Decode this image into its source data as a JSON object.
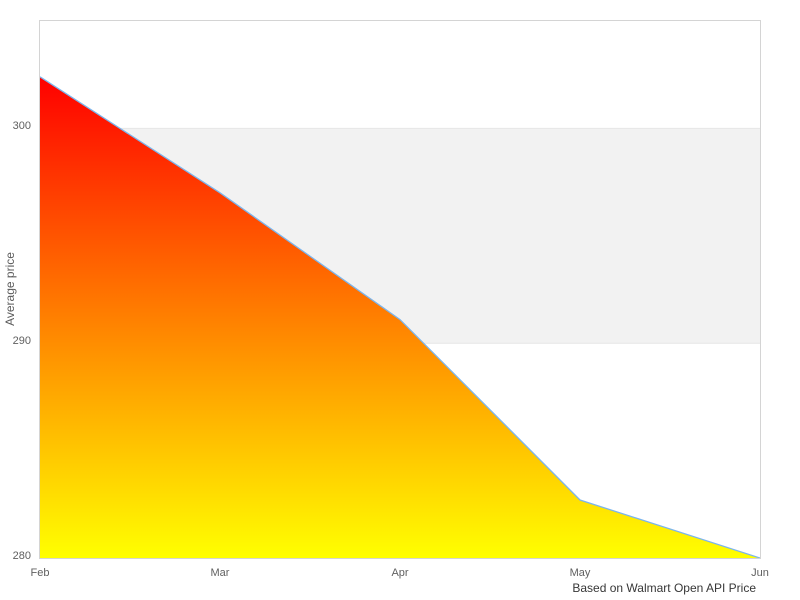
{
  "caption": "Based on Walmart Open API Price",
  "chart_data": {
    "type": "area",
    "title": "",
    "xlabel": "",
    "ylabel": "Average price",
    "categories": [
      "Feb",
      "Mar",
      "Apr",
      "May",
      "Jun"
    ],
    "series": [
      {
        "name": "Average price",
        "values": [
          302.4,
          297.0,
          291.1,
          282.7,
          280.0
        ]
      }
    ],
    "ylim": [
      280,
      305
    ],
    "yticks": [
      280,
      290,
      300
    ],
    "legend": "none",
    "grid": "horizontal",
    "plot_band": {
      "from": 290,
      "to": 300,
      "color": "#f2f2f2"
    },
    "colors": {
      "line": "#7cb5ec",
      "area_top": "#ff0000",
      "area_bottom": "#ffff00",
      "plot_border": "#d4d4d4",
      "gridline": "#e6e6e6",
      "axis_label": "#606060",
      "caption_text": "#373737"
    }
  }
}
